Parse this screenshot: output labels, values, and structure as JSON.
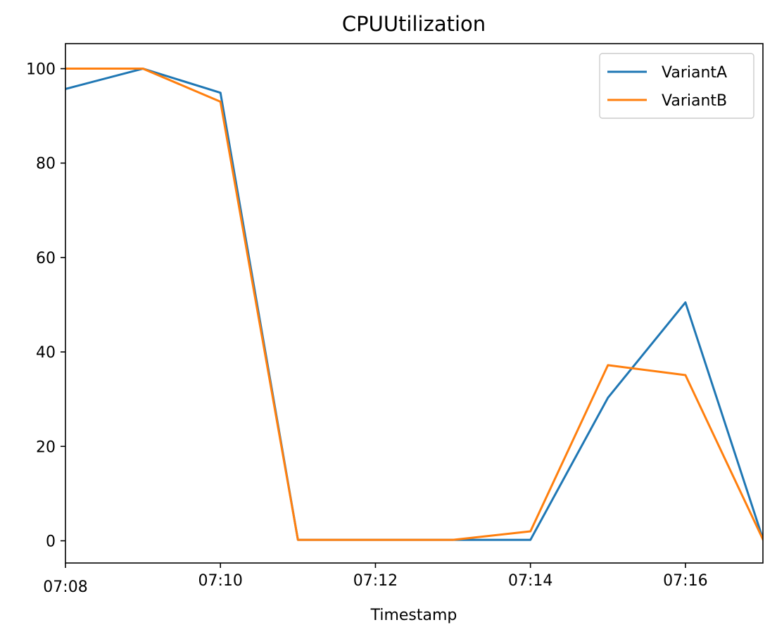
{
  "chart_data": {
    "type": "line",
    "title": "CPUUtilization",
    "xlabel": "Timestamp",
    "ylabel": "",
    "x": [
      "07:08",
      "07:09",
      "07:10",
      "07:11",
      "07:12",
      "07:13",
      "07:14",
      "07:15",
      "07:16",
      "07:17"
    ],
    "xlim": [
      "07:08",
      "07:17"
    ],
    "ylim": [
      -4.7,
      105.3
    ],
    "x_ticks": [
      "07:08",
      "07:10",
      "07:12",
      "07:14",
      "07:16"
    ],
    "y_ticks": [
      0,
      20,
      40,
      60,
      80,
      100
    ],
    "grid": false,
    "legend_position": "top-right",
    "series": [
      {
        "name": "VariantA",
        "color": "#1f77b4",
        "values": [
          95.7,
          100.0,
          94.9,
          0.2,
          0.2,
          0.2,
          0.2,
          30.3,
          50.5,
          0.4
        ]
      },
      {
        "name": "VariantB",
        "color": "#ff7f0e",
        "values": [
          100.0,
          100.0,
          93.0,
          0.2,
          0.2,
          0.2,
          2.0,
          37.2,
          35.1,
          0.3
        ]
      }
    ]
  }
}
